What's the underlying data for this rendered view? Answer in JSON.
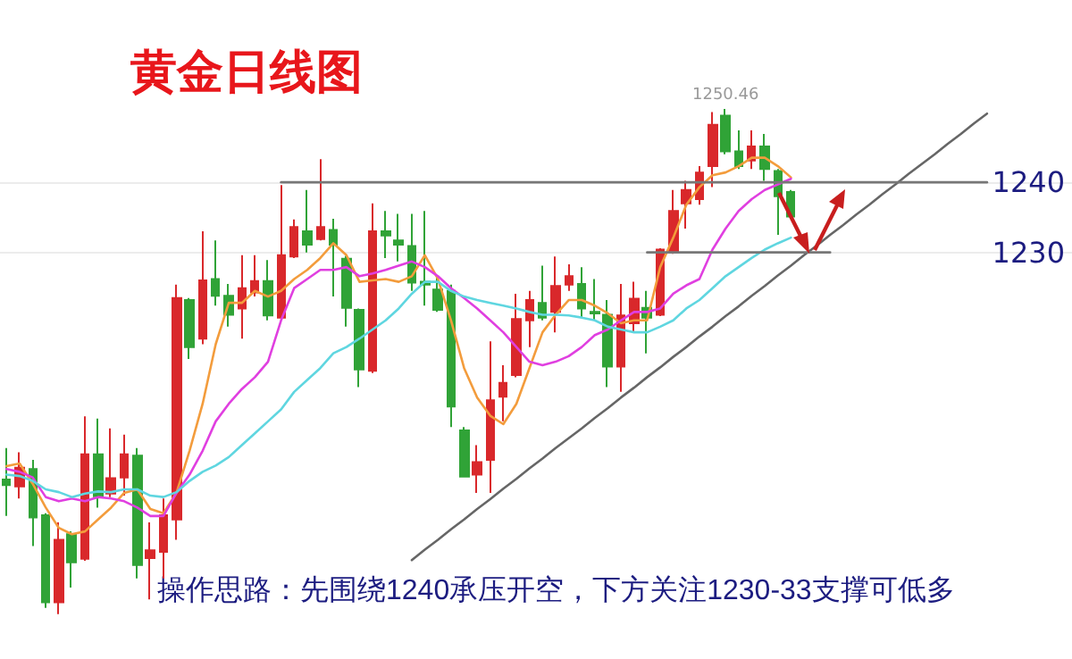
{
  "chart_data": {
    "type": "candlestick",
    "title": "黄金日线图",
    "categories": [
      null,
      null,
      null,
      null,
      null,
      null,
      null,
      null,
      null,
      null,
      null,
      null,
      null,
      null,
      null,
      null,
      null,
      null,
      null,
      null,
      null,
      null,
      null,
      null,
      null,
      null,
      null,
      null,
      null,
      null,
      null,
      null,
      null,
      null,
      null,
      null,
      null,
      null,
      null,
      null,
      null,
      null,
      null,
      null,
      null,
      null,
      null,
      null,
      null,
      null,
      null,
      null,
      null,
      null,
      null,
      null,
      null,
      null,
      null,
      null,
      null,
      null,
      null,
      null,
      null,
      null,
      null,
      null,
      null,
      null,
      null,
      null,
      null,
      null,
      null,
      null,
      null,
      null,
      null,
      null,
      null,
      null
    ],
    "ohlc": [
      [
        1197.6,
        1202.1,
        1192.4,
        1196.8
      ],
      [
        1196.6,
        1201.5,
        1194.9,
        1199.3
      ],
      [
        1199.1,
        1200.4,
        1188.1,
        1192.2
      ],
      [
        1192.5,
        1192.8,
        1179.3,
        1180.1
      ],
      [
        1180.1,
        1191.5,
        1178.4,
        1189.0
      ],
      [
        1189.8,
        1190.2,
        1182.2,
        1185.8
      ],
      [
        1186.3,
        1206.6,
        1186.0,
        1201.2
      ],
      [
        1201.2,
        1206.3,
        1193.6,
        1195.2
      ],
      [
        1195.6,
        1204.9,
        1195.1,
        1197.8
      ],
      [
        1197.9,
        1204.0,
        1195.3,
        1201.2
      ],
      [
        1201.0,
        1202.1,
        1183.5,
        1185.4
      ],
      [
        1186.4,
        1191.5,
        1180.5,
        1187.5
      ],
      [
        1187.3,
        1194.9,
        1183.5,
        1192.5
      ],
      [
        1191.9,
        1225.4,
        1189.0,
        1223.5
      ],
      [
        1223.2,
        1223.5,
        1214.8,
        1216.5
      ],
      [
        1217.7,
        1233.0,
        1216.9,
        1226.0
      ],
      [
        1226.2,
        1231.7,
        1222.4,
        1223.8
      ],
      [
        1223.8,
        1225.5,
        1219.4,
        1221.1
      ],
      [
        1222.0,
        1229.6,
        1217.7,
        1224.9
      ],
      [
        1224.3,
        1229.6,
        1223.7,
        1225.9
      ],
      [
        1225.9,
        1228.9,
        1220.3,
        1221.0
      ],
      [
        1220.7,
        1239.6,
        1220.5,
        1229.6
      ],
      [
        1229.4,
        1234.7,
        1229.2,
        1233.6
      ],
      [
        1233.0,
        1238.9,
        1230.0,
        1231.1
      ],
      [
        1231.9,
        1243.3,
        1231.7,
        1233.6
      ],
      [
        1233.2,
        1234.8,
        1223.7,
        1231.1
      ],
      [
        1229.1,
        1229.5,
        1219.4,
        1222.1
      ],
      [
        1221.8,
        1222.0,
        1210.8,
        1213.3
      ],
      [
        1213.1,
        1237.0,
        1212.8,
        1233.0
      ],
      [
        1233.0,
        1235.9,
        1229.2,
        1232.4
      ],
      [
        1231.7,
        1235.5,
        1228.7,
        1231.1
      ],
      [
        1230.9,
        1235.5,
        1224.5,
        1225.7
      ],
      [
        1225.8,
        1235.9,
        1222.4,
        1225.4
      ],
      [
        1224.7,
        1226.6,
        1221.5,
        1221.8
      ],
      [
        1224.5,
        1225.4,
        1205.1,
        1208.0
      ],
      [
        1204.6,
        1205.1,
        1197.9,
        1198.0
      ],
      [
        1198.3,
        1202.5,
        1195.7,
        1200.1
      ],
      [
        1200.4,
        1217.3,
        1195.7,
        1208.9
      ],
      [
        1209.4,
        1213.9,
        1205.9,
        1211.4
      ],
      [
        1212.5,
        1224.1,
        1212.2,
        1220.5
      ],
      [
        1220.3,
        1224.5,
        1216.5,
        1223.2
      ],
      [
        1222.8,
        1228.1,
        1220.3,
        1220.7
      ],
      [
        1221.5,
        1229.4,
        1218.6,
        1225.2
      ],
      [
        1225.4,
        1228.3,
        1224.5,
        1226.6
      ],
      [
        1225.5,
        1227.9,
        1220.7,
        1222.0
      ],
      [
        1221.5,
        1226.2,
        1220.3,
        1221.3
      ],
      [
        1221.1,
        1223.2,
        1210.8,
        1213.7
      ],
      [
        1213.7,
        1225.5,
        1210.1,
        1221.0
      ],
      [
        1219.9,
        1225.8,
        1218.6,
        1223.4
      ],
      [
        1222.1,
        1224.5,
        1215.6,
        1220.7
      ],
      [
        1221.1,
        1230.6,
        1220.9,
        1230.4
      ],
      [
        1230.0,
        1238.9,
        1229.8,
        1235.9
      ],
      [
        1237.0,
        1240.2,
        1233.4,
        1238.9
      ],
      [
        1237.6,
        1242.3,
        1236.8,
        1241.4
      ],
      [
        1242.3,
        1250.0,
        1239.3,
        1248.2
      ],
      [
        1249.5,
        1250.46,
        1244.0,
        1244.4
      ],
      [
        1244.4,
        1247.4,
        1241.9,
        1242.3
      ],
      [
        1243.1,
        1247.4,
        1241.9,
        1245.1
      ],
      [
        1245.1,
        1246.9,
        1240.2,
        1241.9
      ],
      [
        1241.6,
        1241.9,
        1232.5,
        1238.0
      ],
      [
        1238.6,
        1238.9,
        1234.8,
        1235.1
      ],
      null,
      null,
      null,
      null,
      null,
      null,
      null,
      null,
      null,
      null,
      null,
      null,
      null,
      null,
      null,
      null,
      null,
      null,
      null,
      null,
      null
    ],
    "series": [
      {
        "type": "line",
        "color": "#f39c3c",
        "values": [
          1199.5,
          1199.9,
          1197,
          1193.6,
          1190.7,
          1189.8,
          1190.2,
          1191.9,
          1193.6,
          1195.7,
          1196.2,
          1193.4,
          1192.8,
          1195.7,
          1201.7,
          1208.4,
          1216.9,
          1222.8,
          1222.8,
          1224.5,
          1223.7,
          1224.5,
          1226.2,
          1227.5,
          1229.2,
          1231.3,
          1229.6,
          1225.8,
          1226,
          1226.2,
          1225.8,
          1226.6,
          1229.6,
          1226.2,
          1220.3,
          1213.5,
          1209.3,
          1206.7,
          1205.5,
          1208.4,
          1213.5,
          1218.6,
          1221.1,
          1223.2,
          1223.2,
          1222.4,
          1221.3,
          1219.9,
          1220.3,
          1220.3,
          1227.9,
          1232.1,
          1236.8,
          1239.3,
          1241.0,
          1241.4,
          1242.3,
          1243.5,
          1243.5,
          1242.3,
          1240.7,
          null,
          null,
          null,
          null,
          null,
          null,
          null,
          null,
          null,
          null,
          null,
          null,
          null,
          null,
          null,
          null,
          null,
          null,
          null,
          null,
          null
        ]
      },
      {
        "type": "line",
        "color": "#e03fe0",
        "values": [
          1199.1,
          1198.7,
          1197.9,
          1195.1,
          1194.5,
          1194.9,
          1194.5,
          1195.1,
          1194.9,
          1194.5,
          1193.6,
          1192.4,
          1192.4,
          1195.7,
          1198.3,
          1201.7,
          1205.9,
          1208.4,
          1210.5,
          1212.2,
          1214.4,
          1220.3,
          1224.9,
          1226.2,
          1227.5,
          1227.5,
          1227.9,
          1226.6,
          1227.0,
          1227.5,
          1228.1,
          1228.7,
          1227.9,
          1226.6,
          1224.9,
          1223.5,
          1222.0,
          1220.3,
          1218.6,
          1216.5,
          1214.4,
          1213.9,
          1214.4,
          1215.2,
          1216.5,
          1218.2,
          1219.0,
          1220.3,
          1221.5,
          1221.5,
          1222.0,
          1224.1,
          1225.3,
          1226.2,
          1230.4,
          1233.4,
          1235.9,
          1237.6,
          1238.9,
          1239.7,
          1240.5,
          null,
          null,
          null,
          null,
          null,
          null,
          null,
          null,
          null,
          null,
          null,
          null,
          null,
          null,
          null,
          null,
          null,
          null,
          null,
          null,
          null
        ]
      },
      {
        "type": "line",
        "color": "#5fd6e0",
        "values": [
          1198.3,
          1198.1,
          1197.4,
          1196.2,
          1195.8,
          1195.1,
          1195.6,
          1195.9,
          1195.8,
          1196.2,
          1196.2,
          1195.3,
          1195.1,
          1195.8,
          1197.4,
          1198.7,
          1199.6,
          1200.8,
          1202.5,
          1204.2,
          1205.9,
          1207.6,
          1210.1,
          1211.8,
          1213.5,
          1215.6,
          1216.5,
          1217.7,
          1219.0,
          1220.3,
          1222.0,
          1224.1,
          1225.8,
          1225.8,
          1224.5,
          1223.7,
          1223.2,
          1222.8,
          1222.4,
          1222.0,
          1221.5,
          1221.1,
          1221.1,
          1221.0,
          1220.7,
          1220.3,
          1219.4,
          1219.0,
          1218.6,
          1218.6,
          1219.4,
          1220.3,
          1222.0,
          1223.2,
          1224.9,
          1226.6,
          1227.9,
          1229.2,
          1230.4,
          1231.3,
          1232.1,
          null,
          null,
          null,
          null,
          null,
          null,
          null,
          null,
          null,
          null,
          null,
          null,
          null,
          null,
          null,
          null,
          null,
          null,
          null,
          null,
          null
        ]
      },
      {
        "type": "line",
        "color": "#666666",
        "values": [
          null,
          null,
          null,
          null,
          null,
          null,
          null,
          null,
          null,
          null,
          null,
          null,
          null,
          null,
          null,
          null,
          null,
          null,
          null,
          null,
          null,
          null,
          null,
          null,
          null,
          null,
          null,
          null,
          null,
          null,
          null,
          1186.1,
          1187.6,
          1189.0,
          1190.5,
          1191.9,
          1193.4,
          1194.8,
          1196.3,
          1197.7,
          1199.2,
          1200.6,
          1202.1,
          1203.5,
          1204.9,
          1206.4,
          1207.8,
          1209.3,
          1210.7,
          1212.2,
          1213.6,
          1215.1,
          1216.5,
          1218.0,
          1219.4,
          1220.9,
          1222.3,
          1223.8,
          1225.2,
          1226.7,
          1228.1,
          1229.6,
          1231.0,
          1232.5,
          1233.9,
          1235.4,
          1236.8,
          1238.3,
          1239.7,
          1241.2,
          1242.6,
          1244.0,
          1245.5,
          1246.9,
          1248.4,
          1249.8,
          null,
          null,
          null,
          null,
          null,
          null
        ]
      },
      {
        "type": "line",
        "color": "#777777",
        "values": [
          null,
          null,
          null,
          null,
          null,
          null,
          null,
          null,
          null,
          null,
          null,
          null,
          null,
          null,
          null,
          null,
          null,
          null,
          null,
          null,
          null,
          1240,
          1240,
          1240,
          1240,
          1240,
          1240,
          1240,
          1240,
          1240,
          1240,
          1240,
          1240,
          1240,
          1240,
          1240,
          1240,
          1240,
          1240,
          1240,
          1240,
          1240,
          1240,
          1240,
          1240,
          1240,
          1240,
          1240,
          1240,
          1240,
          1240,
          1240,
          1240,
          1240,
          1240,
          1240,
          1240,
          1240,
          1240,
          1240,
          1240,
          1240,
          1240,
          1240,
          1240,
          1240,
          1240,
          1240,
          1240,
          1240,
          1240,
          1240,
          1240,
          1240,
          1240,
          1240,
          null,
          null,
          null,
          null,
          null,
          null
        ]
      },
      {
        "type": "line",
        "color": "#777777",
        "values": [
          null,
          null,
          null,
          null,
          null,
          null,
          null,
          null,
          null,
          null,
          null,
          null,
          null,
          null,
          null,
          null,
          null,
          null,
          null,
          null,
          null,
          null,
          null,
          null,
          null,
          null,
          null,
          null,
          null,
          null,
          null,
          null,
          null,
          null,
          null,
          null,
          null,
          null,
          null,
          null,
          null,
          null,
          null,
          null,
          null,
          null,
          null,
          null,
          null,
          1230,
          1230,
          1230,
          1230,
          1230,
          1230,
          1230,
          1230,
          1230,
          1230,
          1230,
          1230,
          1230,
          1230,
          1230,
          null,
          null,
          null,
          null,
          null,
          null,
          null,
          null,
          null,
          null,
          null,
          null,
          null,
          null,
          null,
          null,
          null,
          null
        ]
      }
    ],
    "annotations": [
      "操作思路：先围绕1240承压开空，下方关注1230-33支撑可低多",
      "1250.46"
    ],
    "ylim": [
      1172,
      1266
    ],
    "yticks": [
      1230,
      1240
    ],
    "tick_labels": "y",
    "grid": "y"
  }
}
